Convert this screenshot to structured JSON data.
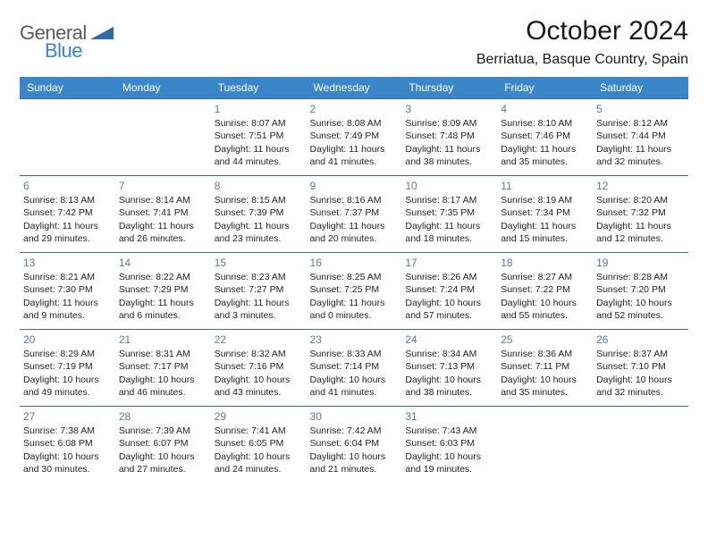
{
  "brand": {
    "general": "General",
    "blue": "Blue"
  },
  "title": "October 2024",
  "location": "Berriatua, Basque Country, Spain",
  "colors": {
    "header_bg": "#3a86c8",
    "header_text": "#ffffff",
    "cell_border": "#3a6a9a",
    "daynum": "#5a7a9a",
    "logo_gray": "#555b60",
    "logo_blue": "#3b82c4"
  },
  "day_headers": [
    "Sunday",
    "Monday",
    "Tuesday",
    "Wednesday",
    "Thursday",
    "Friday",
    "Saturday"
  ],
  "weeks": [
    [
      null,
      null,
      {
        "n": "1",
        "sr": "8:07 AM",
        "ss": "7:51 PM",
        "dl": "11 hours and 44 minutes."
      },
      {
        "n": "2",
        "sr": "8:08 AM",
        "ss": "7:49 PM",
        "dl": "11 hours and 41 minutes."
      },
      {
        "n": "3",
        "sr": "8:09 AM",
        "ss": "7:48 PM",
        "dl": "11 hours and 38 minutes."
      },
      {
        "n": "4",
        "sr": "8:10 AM",
        "ss": "7:46 PM",
        "dl": "11 hours and 35 minutes."
      },
      {
        "n": "5",
        "sr": "8:12 AM",
        "ss": "7:44 PM",
        "dl": "11 hours and 32 minutes."
      }
    ],
    [
      {
        "n": "6",
        "sr": "8:13 AM",
        "ss": "7:42 PM",
        "dl": "11 hours and 29 minutes."
      },
      {
        "n": "7",
        "sr": "8:14 AM",
        "ss": "7:41 PM",
        "dl": "11 hours and 26 minutes."
      },
      {
        "n": "8",
        "sr": "8:15 AM",
        "ss": "7:39 PM",
        "dl": "11 hours and 23 minutes."
      },
      {
        "n": "9",
        "sr": "8:16 AM",
        "ss": "7:37 PM",
        "dl": "11 hours and 20 minutes."
      },
      {
        "n": "10",
        "sr": "8:17 AM",
        "ss": "7:35 PM",
        "dl": "11 hours and 18 minutes."
      },
      {
        "n": "11",
        "sr": "8:19 AM",
        "ss": "7:34 PM",
        "dl": "11 hours and 15 minutes."
      },
      {
        "n": "12",
        "sr": "8:20 AM",
        "ss": "7:32 PM",
        "dl": "11 hours and 12 minutes."
      }
    ],
    [
      {
        "n": "13",
        "sr": "8:21 AM",
        "ss": "7:30 PM",
        "dl": "11 hours and 9 minutes."
      },
      {
        "n": "14",
        "sr": "8:22 AM",
        "ss": "7:29 PM",
        "dl": "11 hours and 6 minutes."
      },
      {
        "n": "15",
        "sr": "8:23 AM",
        "ss": "7:27 PM",
        "dl": "11 hours and 3 minutes."
      },
      {
        "n": "16",
        "sr": "8:25 AM",
        "ss": "7:25 PM",
        "dl": "11 hours and 0 minutes."
      },
      {
        "n": "17",
        "sr": "8:26 AM",
        "ss": "7:24 PM",
        "dl": "10 hours and 57 minutes."
      },
      {
        "n": "18",
        "sr": "8:27 AM",
        "ss": "7:22 PM",
        "dl": "10 hours and 55 minutes."
      },
      {
        "n": "19",
        "sr": "8:28 AM",
        "ss": "7:20 PM",
        "dl": "10 hours and 52 minutes."
      }
    ],
    [
      {
        "n": "20",
        "sr": "8:29 AM",
        "ss": "7:19 PM",
        "dl": "10 hours and 49 minutes."
      },
      {
        "n": "21",
        "sr": "8:31 AM",
        "ss": "7:17 PM",
        "dl": "10 hours and 46 minutes."
      },
      {
        "n": "22",
        "sr": "8:32 AM",
        "ss": "7:16 PM",
        "dl": "10 hours and 43 minutes."
      },
      {
        "n": "23",
        "sr": "8:33 AM",
        "ss": "7:14 PM",
        "dl": "10 hours and 41 minutes."
      },
      {
        "n": "24",
        "sr": "8:34 AM",
        "ss": "7:13 PM",
        "dl": "10 hours and 38 minutes."
      },
      {
        "n": "25",
        "sr": "8:36 AM",
        "ss": "7:11 PM",
        "dl": "10 hours and 35 minutes."
      },
      {
        "n": "26",
        "sr": "8:37 AM",
        "ss": "7:10 PM",
        "dl": "10 hours and 32 minutes."
      }
    ],
    [
      {
        "n": "27",
        "sr": "7:38 AM",
        "ss": "6:08 PM",
        "dl": "10 hours and 30 minutes."
      },
      {
        "n": "28",
        "sr": "7:39 AM",
        "ss": "6:07 PM",
        "dl": "10 hours and 27 minutes."
      },
      {
        "n": "29",
        "sr": "7:41 AM",
        "ss": "6:05 PM",
        "dl": "10 hours and 24 minutes."
      },
      {
        "n": "30",
        "sr": "7:42 AM",
        "ss": "6:04 PM",
        "dl": "10 hours and 21 minutes."
      },
      {
        "n": "31",
        "sr": "7:43 AM",
        "ss": "6:03 PM",
        "dl": "10 hours and 19 minutes."
      },
      null,
      null
    ]
  ],
  "labels": {
    "sunrise": "Sunrise:",
    "sunset": "Sunset:",
    "daylight": "Daylight:"
  }
}
